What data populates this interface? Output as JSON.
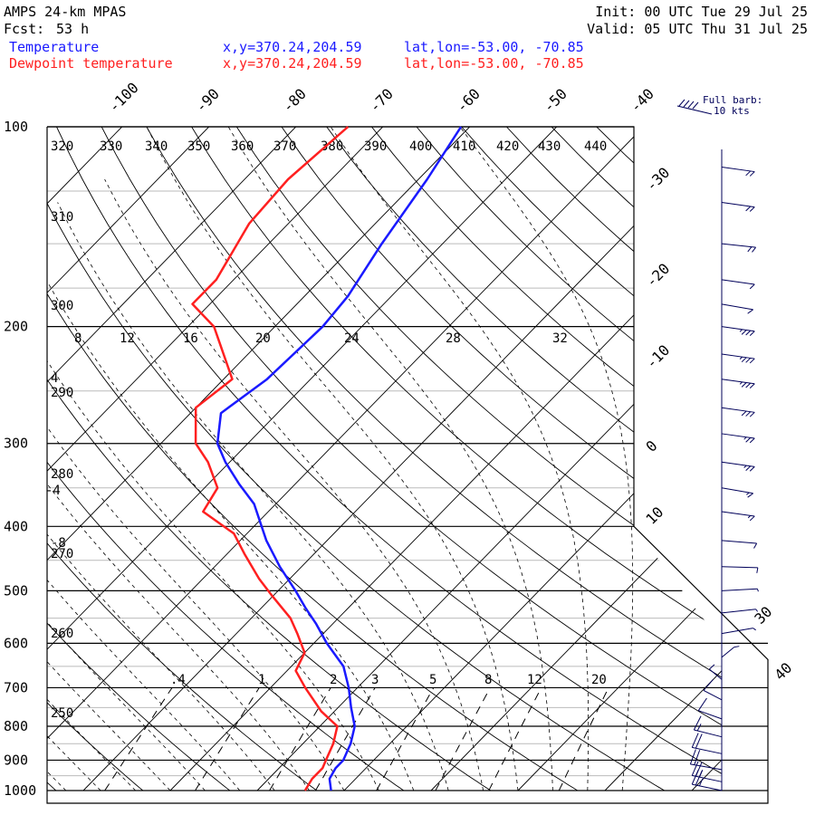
{
  "header": {
    "model": "AMPS 24-km MPAS",
    "fcst_label": "Fcst:",
    "fcst_value": "53 h",
    "init": "Init: 00 UTC Tue 29 Jul 25",
    "valid": "Valid: 05 UTC Thu 31 Jul 25",
    "series": [
      {
        "name": "Temperature",
        "xy": "x,y=370.24,204.59",
        "latlon": "lat,lon=-53.00, -70.85",
        "color": "#1a1aff"
      },
      {
        "name": "Dewpoint temperature",
        "xy": "x,y=370.24,204.59",
        "latlon": "lat,lon=-53.00, -70.85",
        "color": "#ff2020"
      }
    ]
  },
  "legend": {
    "barb_title": "Full barb:",
    "barb_value": "10 kts"
  },
  "chart_data": {
    "type": "line",
    "subtype": "skew-T log-p sounding",
    "y_axis": {
      "quantity": "pressure (hPa)",
      "scale": "log",
      "range": [
        1000,
        100
      ],
      "ticks": [
        "100",
        "200",
        "300",
        "400",
        "500",
        "600",
        "700",
        "800",
        "900",
        "1000"
      ]
    },
    "isotherm_labels": [
      "-100",
      "-90",
      "-80",
      "-70",
      "-60",
      "-50",
      "-40",
      "-30",
      "-20",
      "-10",
      "0",
      "10",
      "30",
      "40"
    ],
    "left_labels": [
      "4",
      "-4",
      "-8"
    ],
    "theta_labels": [
      "320",
      "330",
      "340",
      "350",
      "360",
      "370",
      "380",
      "390",
      "400",
      "410",
      "420",
      "430",
      "440",
      "310",
      "300",
      "290",
      "280",
      "270",
      "260",
      "250"
    ],
    "theta_e_labels": [
      "8",
      "12",
      "16",
      "20",
      "24",
      "28",
      "32"
    ],
    "mixing_ratio_labels": [
      ".4",
      "1",
      "2",
      "3",
      "5",
      "8",
      "12",
      "20"
    ],
    "series": [
      {
        "name": "Temperature",
        "color": "#1a1aff",
        "points": [
          {
            "p": 1000,
            "t": -1.5
          },
          {
            "p": 960,
            "t": -3.0
          },
          {
            "p": 925,
            "t": -3.5
          },
          {
            "p": 900,
            "t": -3.5
          },
          {
            "p": 850,
            "t": -4.5
          },
          {
            "p": 800,
            "t": -6.0
          },
          {
            "p": 750,
            "t": -8.5
          },
          {
            "p": 700,
            "t": -11.0
          },
          {
            "p": 650,
            "t": -14.0
          },
          {
            "p": 600,
            "t": -18.5
          },
          {
            "p": 560,
            "t": -22.0
          },
          {
            "p": 530,
            "t": -25.0
          },
          {
            "p": 500,
            "t": -28.0
          },
          {
            "p": 460,
            "t": -32.5
          },
          {
            "p": 420,
            "t": -37.0
          },
          {
            "p": 370,
            "t": -42.5
          },
          {
            "p": 345,
            "t": -46.5
          },
          {
            "p": 320,
            "t": -50.5
          },
          {
            "p": 300,
            "t": -53.5
          },
          {
            "p": 270,
            "t": -56.5
          },
          {
            "p": 240,
            "t": -55.0
          },
          {
            "p": 200,
            "t": -54.5
          },
          {
            "p": 180,
            "t": -55.0
          },
          {
            "p": 150,
            "t": -57.0
          },
          {
            "p": 120,
            "t": -59.0
          },
          {
            "p": 100,
            "t": -61.0
          }
        ]
      },
      {
        "name": "Dewpoint temperature",
        "color": "#ff2020",
        "points": [
          {
            "p": 1000,
            "t": -4.5
          },
          {
            "p": 960,
            "t": -5.0
          },
          {
            "p": 925,
            "t": -5.0
          },
          {
            "p": 900,
            "t": -5.5
          },
          {
            "p": 850,
            "t": -6.5
          },
          {
            "p": 800,
            "t": -8.0
          },
          {
            "p": 760,
            "t": -11.5
          },
          {
            "p": 700,
            "t": -16.0
          },
          {
            "p": 660,
            "t": -19.0
          },
          {
            "p": 620,
            "t": -20.0
          },
          {
            "p": 580,
            "t": -23.0
          },
          {
            "p": 550,
            "t": -25.5
          },
          {
            "p": 510,
            "t": -30.0
          },
          {
            "p": 480,
            "t": -33.5
          },
          {
            "p": 440,
            "t": -38.0
          },
          {
            "p": 410,
            "t": -41.5
          },
          {
            "p": 380,
            "t": -47.5
          },
          {
            "p": 350,
            "t": -48.5
          },
          {
            "p": 320,
            "t": -52.5
          },
          {
            "p": 300,
            "t": -56.0
          },
          {
            "p": 265,
            "t": -60.0
          },
          {
            "p": 240,
            "t": -59.0
          },
          {
            "p": 200,
            "t": -67.0
          },
          {
            "p": 185,
            "t": -72.0
          },
          {
            "p": 170,
            "t": -72.0
          },
          {
            "p": 140,
            "t": -74.5
          },
          {
            "p": 120,
            "t": -75.0
          },
          {
            "p": 100,
            "t": -74.0
          }
        ]
      }
    ],
    "wind_barbs": [
      {
        "p": 115,
        "speed": 20,
        "dir": 295
      },
      {
        "p": 130,
        "speed": 20,
        "dir": 295
      },
      {
        "p": 150,
        "speed": 20,
        "dir": 290
      },
      {
        "p": 170,
        "speed": 10,
        "dir": 295
      },
      {
        "p": 185,
        "speed": 10,
        "dir": 300
      },
      {
        "p": 200,
        "speed": 35,
        "dir": 295
      },
      {
        "p": 220,
        "speed": 35,
        "dir": 295
      },
      {
        "p": 240,
        "speed": 35,
        "dir": 295
      },
      {
        "p": 265,
        "speed": 30,
        "dir": 295
      },
      {
        "p": 290,
        "speed": 25,
        "dir": 295
      },
      {
        "p": 320,
        "speed": 25,
        "dir": 295
      },
      {
        "p": 350,
        "speed": 15,
        "dir": 300
      },
      {
        "p": 380,
        "speed": 15,
        "dir": 295
      },
      {
        "p": 420,
        "speed": 10,
        "dir": 285
      },
      {
        "p": 460,
        "speed": 10,
        "dir": 275
      },
      {
        "p": 500,
        "speed": 5,
        "dir": 260
      },
      {
        "p": 540,
        "speed": 5,
        "dir": 250
      },
      {
        "p": 580,
        "speed": 5,
        "dir": 240
      },
      {
        "p": 630,
        "speed": 5,
        "dir": 200
      },
      {
        "p": 680,
        "speed": 5,
        "dir": 160
      },
      {
        "p": 730,
        "speed": 10,
        "dir": 150
      },
      {
        "p": 780,
        "speed": 10,
        "dir": 140
      },
      {
        "p": 830,
        "speed": 15,
        "dir": 130
      },
      {
        "p": 880,
        "speed": 20,
        "dir": 125
      },
      {
        "p": 930,
        "speed": 20,
        "dir": 120
      },
      {
        "p": 970,
        "speed": 25,
        "dir": 125
      },
      {
        "p": 1000,
        "speed": 25,
        "dir": 125
      }
    ],
    "colors": {
      "temperature": "#1a1aff",
      "dewpoint": "#ff2020",
      "barbs": "#00005a",
      "grid": "#000000",
      "minor_grid": "#bbbbbb"
    }
  }
}
